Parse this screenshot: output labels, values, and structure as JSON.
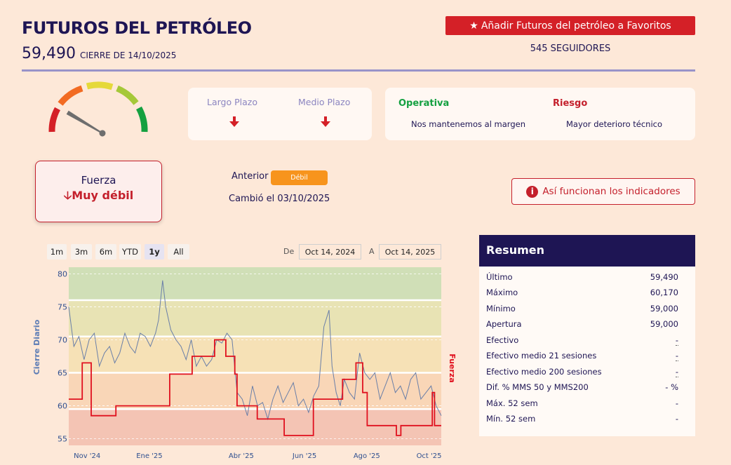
{
  "header": {
    "title": "FUTUROS DEL PETRÓLEO",
    "price": "59,490",
    "close_label": "CIERRE DE 14/10/2025",
    "favorite_button": "Añadir Futuros del petróleo   a Favoritos",
    "followers": "545 SEGUIDORES"
  },
  "colors": {
    "accent_red": "#d42027",
    "navy": "#1e1554",
    "orange": "#f7941d",
    "green": "#14a040"
  },
  "gauge": {
    "level": 0.06,
    "icon": "needle"
  },
  "terms": {
    "long_label": "Largo Plazo",
    "medium_label": "Medio Plazo",
    "long_icon": "arrow-down-icon",
    "medium_icon": "arrow-down-icon"
  },
  "operativa": {
    "title": "Operativa",
    "value": "Nos mantenemos al margen",
    "risk_title": "Riesgo",
    "risk_value": "Mayor deterioro técnico"
  },
  "force": {
    "label": "Fuerza",
    "value": "Muy débil",
    "previous_label": "Anterior",
    "previous_value": "Débil",
    "changed": "Cambió el 03/10/2025",
    "how_button": "Así funcionan los indicadores"
  },
  "range": {
    "buttons": [
      "1m",
      "3m",
      "6m",
      "YTD",
      "1y",
      "All"
    ],
    "active": "1y",
    "from_label": "De",
    "from_value": "Oct 14, 2024",
    "to_label": "A",
    "to_value": "Oct 14, 2025"
  },
  "chart_data": {
    "type": "line",
    "ylabel": "Cierre Diario",
    "y2label": "Fuerza",
    "ylim": [
      54,
      81
    ],
    "yticks": [
      55,
      60,
      65,
      70,
      75,
      80
    ],
    "xticks": [
      "Nov '24",
      "Ene '25",
      "Abr '25",
      "Jun '25",
      "Ago '25",
      "Oct '25"
    ],
    "xtick_days": [
      18,
      79,
      169,
      231,
      292,
      353
    ],
    "total_days": 365,
    "bands": [
      {
        "from": 54,
        "to": 59.5,
        "color": "#f4c4b4"
      },
      {
        "from": 59.5,
        "to": 65,
        "color": "#f9d6b7"
      },
      {
        "from": 65,
        "to": 70.5,
        "color": "#f6e1b6"
      },
      {
        "from": 70.5,
        "to": 76,
        "color": "#e8e3b4"
      },
      {
        "from": 76,
        "to": 81,
        "color": "#d0dfb7"
      }
    ],
    "series": [
      {
        "name": "Cierre Diario",
        "color": "#6a7fa8",
        "days": [
          0,
          5,
          10,
          15,
          20,
          25,
          30,
          35,
          40,
          45,
          50,
          55,
          60,
          65,
          70,
          75,
          80,
          85,
          88,
          92,
          95,
          100,
          105,
          110,
          115,
          120,
          125,
          130,
          135,
          140,
          145,
          150,
          155,
          160,
          165,
          170,
          175,
          180,
          185,
          190,
          195,
          200,
          205,
          210,
          215,
          220,
          225,
          230,
          235,
          240,
          245,
          250,
          255,
          258,
          262,
          266,
          270,
          275,
          280,
          285,
          290,
          295,
          300,
          305,
          310,
          315,
          320,
          325,
          330,
          335,
          340,
          345,
          350,
          355,
          360,
          365
        ],
        "values": [
          75,
          69,
          70.5,
          67,
          70,
          71,
          66,
          68,
          69,
          66.5,
          68,
          71,
          69,
          68,
          71,
          70.5,
          69,
          71,
          73,
          79,
          75,
          71.5,
          70,
          69,
          67,
          70,
          66,
          67.5,
          66,
          67,
          70,
          69.5,
          71,
          70,
          62,
          61,
          58.5,
          63,
          60,
          60.5,
          58,
          61,
          63,
          60.5,
          62,
          63.5,
          60,
          61,
          59,
          61.5,
          63,
          72,
          74.5,
          66,
          62,
          60,
          64,
          62,
          61,
          68,
          65,
          64,
          65,
          61,
          63,
          65,
          62,
          63,
          61,
          64,
          65,
          61,
          62,
          63,
          60,
          58.5
        ]
      }
    ],
    "fuerza": {
      "name": "Fuerza",
      "color": "#e0101e",
      "steps": [
        [
          0,
          61
        ],
        [
          6,
          61
        ],
        [
          6,
          66.5
        ],
        [
          10,
          66.5
        ],
        [
          10,
          58.5
        ],
        [
          21,
          58.5
        ],
        [
          21,
          60
        ],
        [
          45,
          60
        ],
        [
          45,
          64.8
        ],
        [
          55,
          64.8
        ],
        [
          55,
          67.5
        ],
        [
          65,
          67.5
        ],
        [
          65,
          70
        ],
        [
          70,
          70
        ],
        [
          70,
          67.5
        ],
        [
          74,
          67.5
        ],
        [
          74,
          64.8
        ],
        [
          75,
          64.8
        ],
        [
          75,
          60
        ],
        [
          84,
          60
        ],
        [
          84,
          58
        ],
        [
          96,
          58
        ],
        [
          96,
          55.5
        ],
        [
          109,
          55.5
        ],
        [
          109,
          61
        ],
        [
          122,
          61
        ],
        [
          122,
          64
        ],
        [
          128,
          64
        ],
        [
          128,
          66.5
        ],
        [
          131,
          66.5
        ],
        [
          131,
          62
        ],
        [
          133,
          62
        ],
        [
          133,
          57
        ],
        [
          146,
          57
        ],
        [
          146,
          55.5
        ],
        [
          148,
          55.5
        ],
        [
          148,
          57
        ],
        [
          162,
          57
        ],
        [
          162,
          62
        ],
        [
          163,
          62
        ],
        [
          163,
          57
        ],
        [
          166,
          57
        ]
      ]
    }
  },
  "summary": {
    "title": "Resumen",
    "rows": [
      {
        "label": "Último",
        "value": "59,490"
      },
      {
        "label": "Máximo",
        "value": "60,170"
      },
      {
        "label": "Mínimo",
        "value": "59,000"
      },
      {
        "label": "Apertura",
        "value": "59,000"
      },
      {
        "label": "Efectivo",
        "value": "-"
      },
      {
        "label": "Efectivo medio 21 sesiones",
        "value": "-"
      },
      {
        "label": "Efectivo medio 200 sesiones",
        "value": "-"
      },
      {
        "label": "Dif. % MMS 50 y MMS200",
        "value": "- %"
      },
      {
        "label": "Máx. 52 sem",
        "value": "-"
      },
      {
        "label": "Mín. 52 sem",
        "value": "-"
      }
    ]
  }
}
